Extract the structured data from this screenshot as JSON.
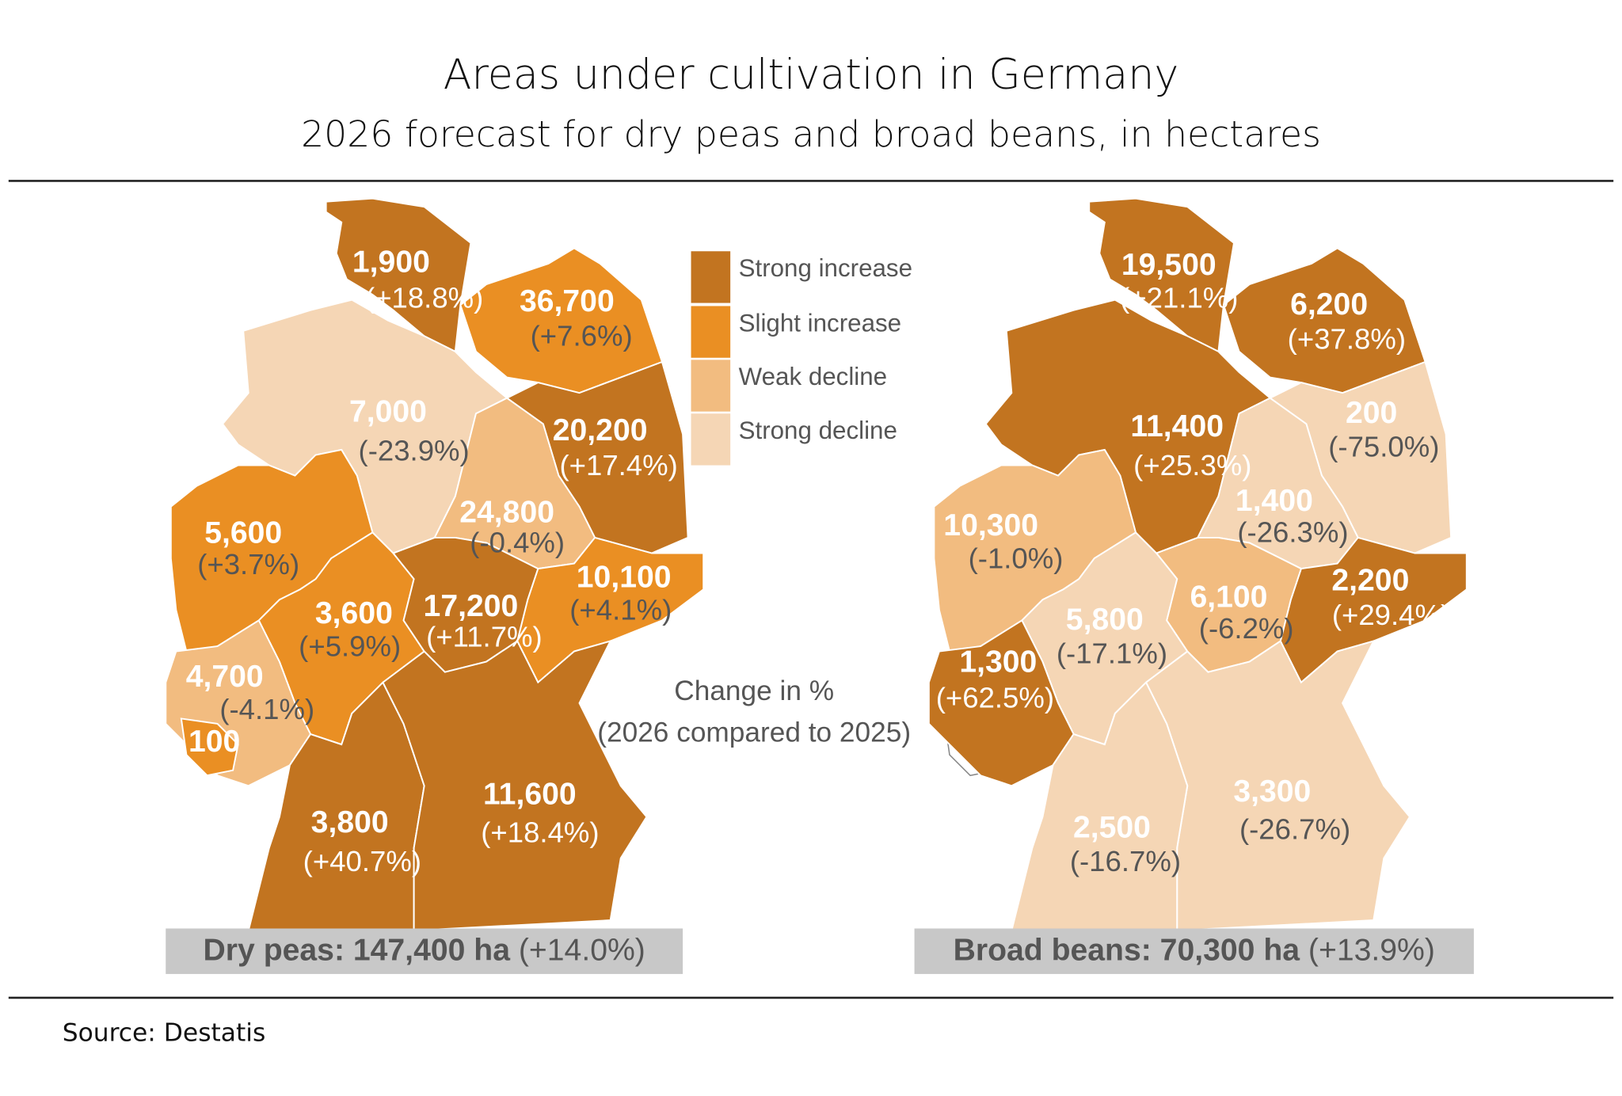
{
  "header": {
    "title": "Areas under cultivation in Germany",
    "subtitle": "2026 forecast for dry peas and broad beans, in hectares"
  },
  "legend": {
    "items": [
      {
        "label": "Strong increase",
        "color": "#c27420"
      },
      {
        "label": "Slight increase",
        "color": "#ea8f23"
      },
      {
        "label": "Weak decline",
        "color": "#f2bc80"
      },
      {
        "label": "Strong decline",
        "color": "#f5d6b5"
      }
    ]
  },
  "note": [
    "Change in %",
    "(2026 compared to 2025)"
  ],
  "maps": [
    {
      "regions": [
        {
          "value": "1,900",
          "change": "(+18.8%)",
          "category": "Strong increase"
        },
        {
          "value": "36,700",
          "change": "(+7.6%)",
          "category": "Slight increase"
        },
        {
          "value": "7,000",
          "change": "(-23.9%)",
          "category": "Strong decline"
        },
        {
          "value": "20,200",
          "change": "(+17.4%)",
          "category": "Strong increase"
        },
        {
          "value": "24,800",
          "change": "(-0.4%)",
          "category": "Weak decline"
        },
        {
          "value": "5,600",
          "change": "(+3.7%)",
          "category": "Slight increase"
        },
        {
          "value": "10,100",
          "change": "(+4.1%)",
          "category": "Slight increase"
        },
        {
          "value": "3,600",
          "change": "(+5.9%)",
          "category": "Slight increase"
        },
        {
          "value": "17,200",
          "change": "(+11.7%)",
          "category": "Strong increase"
        },
        {
          "value": "4,700",
          "change": "(-4.1%)",
          "category": "Weak decline"
        },
        {
          "value": "100",
          "category": "Slight increase"
        },
        {
          "value": "3,800",
          "change": "(+40.7%)",
          "category": "Strong increase"
        },
        {
          "value": "11,600",
          "change": "(+18.4%)",
          "category": "Strong increase"
        }
      ],
      "total": {
        "label": "Dry peas: 147,400 ha",
        "change": "(+14.0%)"
      }
    },
    {
      "regions": [
        {
          "value": "19,500",
          "change": "(+21.1%)",
          "category": "Strong increase"
        },
        {
          "value": "6,200",
          "change": "(+37.8%)",
          "category": "Strong increase"
        },
        {
          "value": "11,400",
          "change": "(+25.3%)",
          "category": "Strong increase"
        },
        {
          "value": "200",
          "change": "(-75.0%)",
          "category": "Strong decline"
        },
        {
          "value": "1,400",
          "change": "(-26.3%)",
          "category": "Strong decline"
        },
        {
          "value": "10,300",
          "change": "(-1.0%)",
          "category": "Weak decline"
        },
        {
          "value": "2,200",
          "change": "(+29.4%)",
          "category": "Strong increase"
        },
        {
          "value": "6,100",
          "change": "(-6.2%)",
          "category": "Weak decline"
        },
        {
          "value": "5,800",
          "change": "(-17.1%)",
          "category": "Strong decline"
        },
        {
          "value": "1,300",
          "change": "(+62.5%)",
          "category": "Strong increase"
        },
        {
          "value": "3,300",
          "change": "(-26.7%)",
          "category": "Strong decline"
        },
        {
          "value": "2,500",
          "change": "(-16.7%)",
          "category": "Strong decline"
        }
      ],
      "total": {
        "label": "Broad beans: 70,300 ha",
        "change": "(+13.9%)"
      }
    }
  ],
  "source": "Source: Destatis"
}
